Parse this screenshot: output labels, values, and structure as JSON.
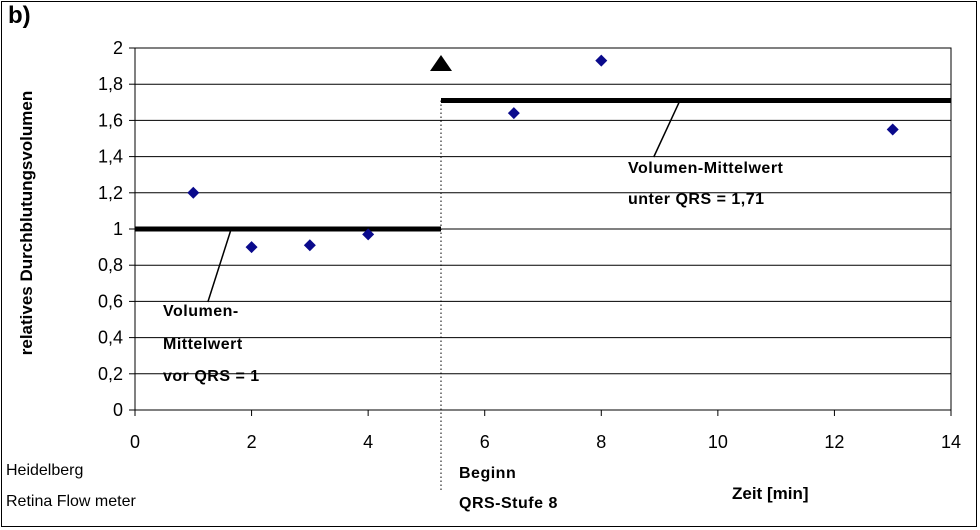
{
  "panel_label": "b)",
  "source": {
    "line1": "Heidelberg",
    "line2": "Retina Flow meter"
  },
  "annotations": {
    "before_line1": "Volumen-",
    "before_line2": "Mittelwert",
    "before_line3": "vor QRS = 1",
    "after_line1": "Volumen-Mittelwert",
    "after_line2": "unter QRS = 1,71",
    "start_line1": "Beginn",
    "start_line2": "QRS-Stufe 8"
  },
  "colors": {
    "marker": "#0a0a8c",
    "mean_line": "#000000",
    "grid": "#000000"
  },
  "chart_data": {
    "type": "scatter",
    "xlabel": "Zeit [min]",
    "ylabel": "relatives Durchblutungsvolumen",
    "xlim": [
      0,
      14
    ],
    "ylim": [
      0,
      2
    ],
    "x_ticks": [
      0,
      2,
      4,
      6,
      8,
      10,
      12,
      14
    ],
    "y_ticks": [
      0,
      0.2,
      0.4,
      0.6,
      0.8,
      1,
      1.2,
      1.4,
      1.6,
      1.8,
      2
    ],
    "x_tick_labels": [
      "0",
      "2",
      "4",
      "6",
      "8",
      "10",
      "12",
      "14"
    ],
    "y_tick_labels": [
      "0",
      "0,2",
      "0,4",
      "0,6",
      "0,8",
      "1",
      "1,2",
      "1,4",
      "1,6",
      "1,8",
      "2"
    ],
    "grid": "horizontal",
    "points": [
      {
        "x": 1,
        "y": 1.2
      },
      {
        "x": 2,
        "y": 0.9
      },
      {
        "x": 3,
        "y": 0.91
      },
      {
        "x": 4,
        "y": 0.97
      },
      {
        "x": 6.5,
        "y": 1.64
      },
      {
        "x": 8,
        "y": 1.93
      },
      {
        "x": 13,
        "y": 1.55
      }
    ],
    "mean_before": {
      "value": 1,
      "x_from": 0,
      "x_to": 5.25
    },
    "mean_after": {
      "value": 1.71,
      "x_from": 5.25,
      "x_to": 14
    },
    "qrs_start_x": 5.25
  }
}
